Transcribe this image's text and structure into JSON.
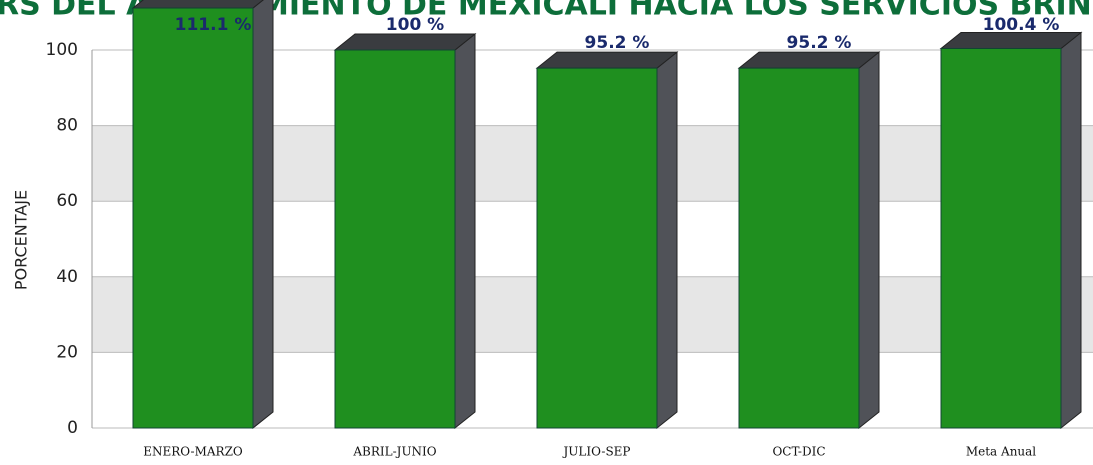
{
  "chart_data": {
    "type": "bar3d",
    "title": "RS DEL AYUNTAMIENTO DE MEXICALI HACIA LOS SERVICIOS BRINDA",
    "ylabel": "PORCENTAJE",
    "categories": [
      "ENERO-MARZO",
      "ABRIL-JUNIO",
      "JULIO-SEP",
      "OCT-DIC",
      "Meta Anual"
    ],
    "values": [
      111.1,
      100,
      95.2,
      95.2,
      100.4
    ],
    "value_labels": [
      "111.1 %",
      "100 %",
      "95.2 %",
      "95.2 %",
      "100.4 %"
    ],
    "color": "#1f8f1f",
    "ylim": [
      0,
      100
    ],
    "yticks": [
      0,
      20,
      40,
      60,
      80,
      100
    ],
    "grid": true
  }
}
